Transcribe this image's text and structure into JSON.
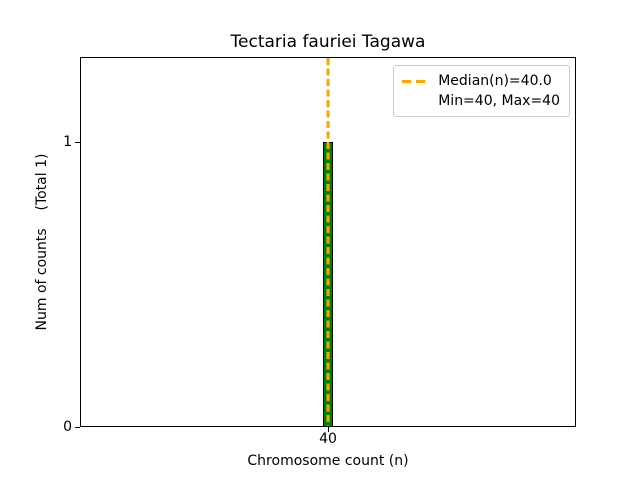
{
  "chart_data": {
    "type": "bar",
    "title": "Tectaria fauriei Tagawa",
    "xlabel": "Chromosome count (n)",
    "ylabel": "Num of counts    (Total 1)",
    "total_counts": 1,
    "categories": [
      40
    ],
    "values": [
      1
    ],
    "xticks": [
      {
        "value": 40,
        "label": "40"
      }
    ],
    "yticks": [
      {
        "value": 0,
        "label": "0"
      },
      {
        "value": 1,
        "label": "1"
      }
    ],
    "ylim": [
      0,
      1.3
    ],
    "grid": false,
    "bar_color": "#008000",
    "bar_edge_color": "#000000",
    "median_line": {
      "x": 40,
      "median": 40.0,
      "min": 40,
      "max": 40,
      "color": "#FFA500",
      "style": "dashed"
    },
    "legend": {
      "position": "upper-right",
      "entries": [
        {
          "label": "Median(n)=40.0",
          "handle": "dashed-line",
          "color": "#FFA500"
        },
        {
          "label": "Min=40, Max=40",
          "handle": "none"
        }
      ]
    }
  }
}
